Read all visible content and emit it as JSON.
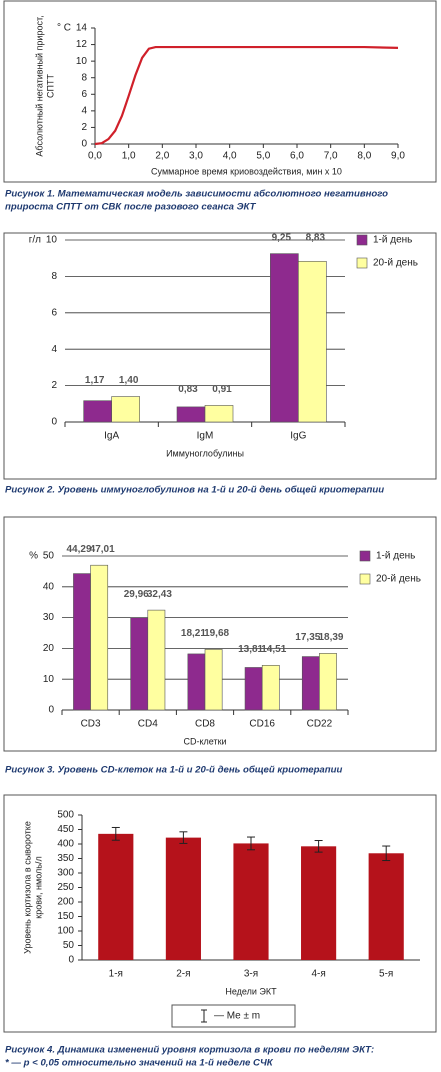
{
  "chart_data": [
    {
      "type": "line",
      "caption": [
        "Рисунок 1. Математическая модель зависимости абсолютного негативного",
        "прироста СПТТ от СВК после разового сеанса ЭКТ"
      ],
      "ylabel": [
        "Абсолютный негативный прирост,",
        "СПТТ"
      ],
      "yunit": "° С",
      "xlabel": "Суммарное время криовоздействия, мин х 10",
      "x": [
        0,
        0.2,
        0.4,
        0.6,
        0.8,
        1.0,
        1.2,
        1.4,
        1.6,
        1.8,
        2,
        3,
        4,
        5,
        6,
        7,
        8,
        9
      ],
      "series": [
        {
          "color": "#d0202a",
          "values": [
            0,
            0.1,
            0.6,
            1.6,
            3.4,
            5.8,
            8.3,
            10.4,
            11.5,
            11.7,
            11.7,
            11.7,
            11.7,
            11.7,
            11.7,
            11.7,
            11.7,
            11.6
          ]
        }
      ],
      "xlim": [
        0,
        9
      ],
      "xticks": [
        {
          "value": 0,
          "label": "0,0"
        },
        {
          "value": 1,
          "label": "1,0"
        },
        {
          "value": 2,
          "label": "2,0"
        },
        {
          "value": 3,
          "label": "3,0"
        },
        {
          "value": 4,
          "label": "4,0"
        },
        {
          "value": 5,
          "label": "5,0"
        },
        {
          "value": 6,
          "label": "6,0"
        },
        {
          "value": 7,
          "label": "7,0"
        },
        {
          "value": 8,
          "label": "8,0"
        },
        {
          "value": 9,
          "label": "9,0"
        }
      ],
      "ylim": [
        0,
        14
      ],
      "yticks": [
        0,
        2,
        4,
        6,
        8,
        10,
        12,
        14
      ],
      "grid": false
    },
    {
      "type": "bar",
      "caption": [
        "Рисунок 2. Уровень иммуноглобулинов на 1-й и 20-й день общей криотерапии"
      ],
      "yunit": "г/л",
      "xlabel": "Иммуноглобулины",
      "categories": [
        "IgA",
        "IgM",
        "IgG"
      ],
      "series": [
        {
          "name": "1-й день",
          "color": "#8e2a8e",
          "values": [
            1.17,
            0.83,
            9.25
          ],
          "value_labels": [
            "1,17",
            "0,83",
            "9,25"
          ]
        },
        {
          "name": "20-й день",
          "color": "#ffffa0",
          "values": [
            1.4,
            0.91,
            8.83
          ],
          "value_labels": [
            "1,40",
            "0,91",
            "8,83"
          ]
        }
      ],
      "ylim": [
        0,
        10
      ],
      "yticks": [
        0,
        2,
        4,
        6,
        8,
        10
      ],
      "grid": true,
      "legend": "right"
    },
    {
      "type": "bar",
      "caption": [
        "Рисунок 3. Уровень CD-клеток на 1-й и 20-й день общей криотерапии"
      ],
      "yunit": "%",
      "xlabel": "CD-клетки",
      "categories": [
        "CD3",
        "CD4",
        "CD8",
        "CD16",
        "CD22"
      ],
      "series": [
        {
          "name": "1-й день",
          "color": "#8e2a8e",
          "values": [
            44.29,
            29.96,
            18.21,
            13.81,
            17.35
          ],
          "value_labels": [
            "44,29",
            "29,96",
            "18,21",
            "13,81",
            "17,35"
          ]
        },
        {
          "name": "20-й день",
          "color": "#ffffa0",
          "values": [
            47.01,
            32.43,
            19.68,
            14.51,
            18.39
          ],
          "value_labels": [
            "47,01",
            "32,43",
            "19,68",
            "14,51",
            "18,39"
          ]
        }
      ],
      "ylim": [
        0,
        50
      ],
      "yticks": [
        0,
        10,
        20,
        30,
        40,
        50
      ],
      "grid": true,
      "legend": "right"
    },
    {
      "type": "errorbar",
      "caption": [
        "Рисунок 4. Динамика изменений уровня кортизола в крови по неделям ЭКТ:",
        "* — р < 0,05 относительно значений на 1-й неделе СЧК"
      ],
      "ylabel": [
        "Уровень кортизола в сыворотке",
        "крови, нмоль/л"
      ],
      "xlabel": "Недели ЭКТ",
      "categories": [
        "1-я",
        "2-я",
        "3-я",
        "4-я",
        "5-я"
      ],
      "values": [
        435,
        422,
        402,
        392,
        368
      ],
      "errors": [
        22,
        20,
        22,
        20,
        25
      ],
      "color": "#b5121b",
      "legend_label": "— Me ± m",
      "ylim": [
        0,
        500
      ],
      "yticks": [
        0,
        50,
        100,
        150,
        200,
        250,
        300,
        350,
        400,
        450,
        500
      ],
      "grid": false
    }
  ]
}
